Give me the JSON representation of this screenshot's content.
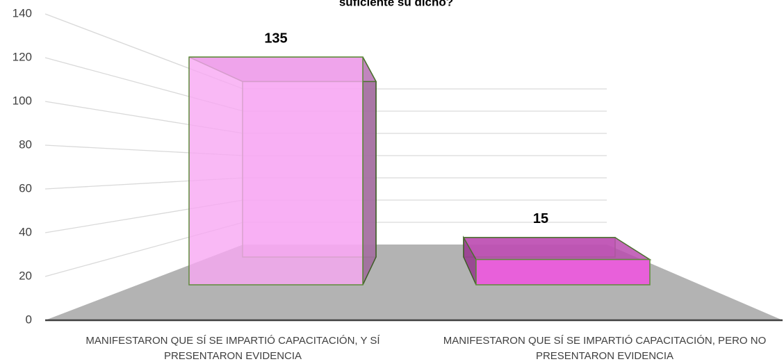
{
  "chart_data": {
    "type": "bar3d",
    "title": "suficiente su dicho?",
    "categories": [
      "MANIFESTARON QUE SÍ SE IMPARTIÓ CAPACITACIÓN, Y SÍ PRESENTARON EVIDENCIA",
      "MANIFESTARON QUE SÍ SE IMPARTIÓ CAPACITACIÓN, PERO NO PRESENTARON EVIDENCIA"
    ],
    "values": [
      135,
      15
    ],
    "colors": [
      "#f7a8f2",
      "#e860da"
    ],
    "ylim": [
      0,
      140
    ],
    "yticks": [
      0,
      20,
      40,
      60,
      80,
      100,
      120,
      140
    ],
    "grid": true
  }
}
